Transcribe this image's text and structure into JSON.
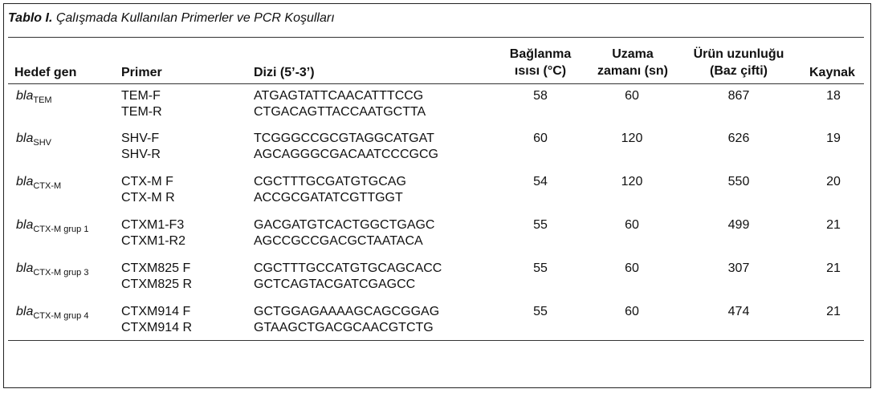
{
  "caption": {
    "label": "Tablo I.",
    "text": " Çalışmada Kullanılan Primerler ve PCR Koşulları"
  },
  "headers": {
    "target_gene": "Hedef gen",
    "primer": "Primer",
    "sequence": "Dizi (5’-3’)",
    "annealing_l1": "Bağlanma",
    "annealing_l2": "ısısı (°C)",
    "extension_l1": "Uzama",
    "extension_l2": "zamanı (sn)",
    "product_l1": "Ürün uzunluğu",
    "product_l2": "(Baz çifti)",
    "reference": "Kaynak"
  },
  "rows": [
    {
      "gene": "bla",
      "gene_sub": "TEM",
      "primers": [
        "TEM-F",
        "TEM-R"
      ],
      "seqs": [
        "ATGAGTATTCAACATTTCCG",
        "CTGACAGTTACCAATGCTTA"
      ],
      "temp": "58",
      "time": "60",
      "size": "867",
      "ref": "18"
    },
    {
      "gene": "bla",
      "gene_sub": "SHV",
      "primers": [
        "SHV-F",
        "SHV-R"
      ],
      "seqs": [
        "TCGGGCCGCGTAGGCATGAT",
        "AGCAGGGCGACAATCCCGCG"
      ],
      "temp": "60",
      "time": "120",
      "size": "626",
      "ref": "19"
    },
    {
      "gene": "bla",
      "gene_sub": "CTX-M",
      "primers": [
        "CTX-M F",
        "CTX-M R"
      ],
      "seqs": [
        "CGCTTTGCGATGTGCAG",
        "ACCGCGATATCGTTGGT"
      ],
      "temp": "54",
      "time": "120",
      "size": "550",
      "ref": "20"
    },
    {
      "gene": "bla",
      "gene_sub": "CTX-M grup 1",
      "primers": [
        "CTXM1-F3",
        "CTXM1-R2"
      ],
      "seqs": [
        "GACGATGTCACTGGCTGAGC",
        "AGCCGCCGACGCTAATACA"
      ],
      "temp": "55",
      "time": "60",
      "size": "499",
      "ref": "21"
    },
    {
      "gene": "bla",
      "gene_sub": "CTX-M grup 3",
      "primers": [
        "CTXM825 F",
        "CTXM825 R"
      ],
      "seqs": [
        "CGCTTTGCCATGTGCAGCACC",
        "GCTCAGTACGATCGAGCC"
      ],
      "temp": "55",
      "time": "60",
      "size": "307",
      "ref": "21"
    },
    {
      "gene": "bla",
      "gene_sub": "CTX-M grup 4",
      "primers": [
        "CTXM914 F",
        "CTXM914 R"
      ],
      "seqs": [
        "GCTGGAGAAAAGCAGCGGAG",
        "GTAAGCTGACGCAACGTCTG"
      ],
      "temp": "55",
      "time": "60",
      "size": "474",
      "ref": "21"
    }
  ]
}
